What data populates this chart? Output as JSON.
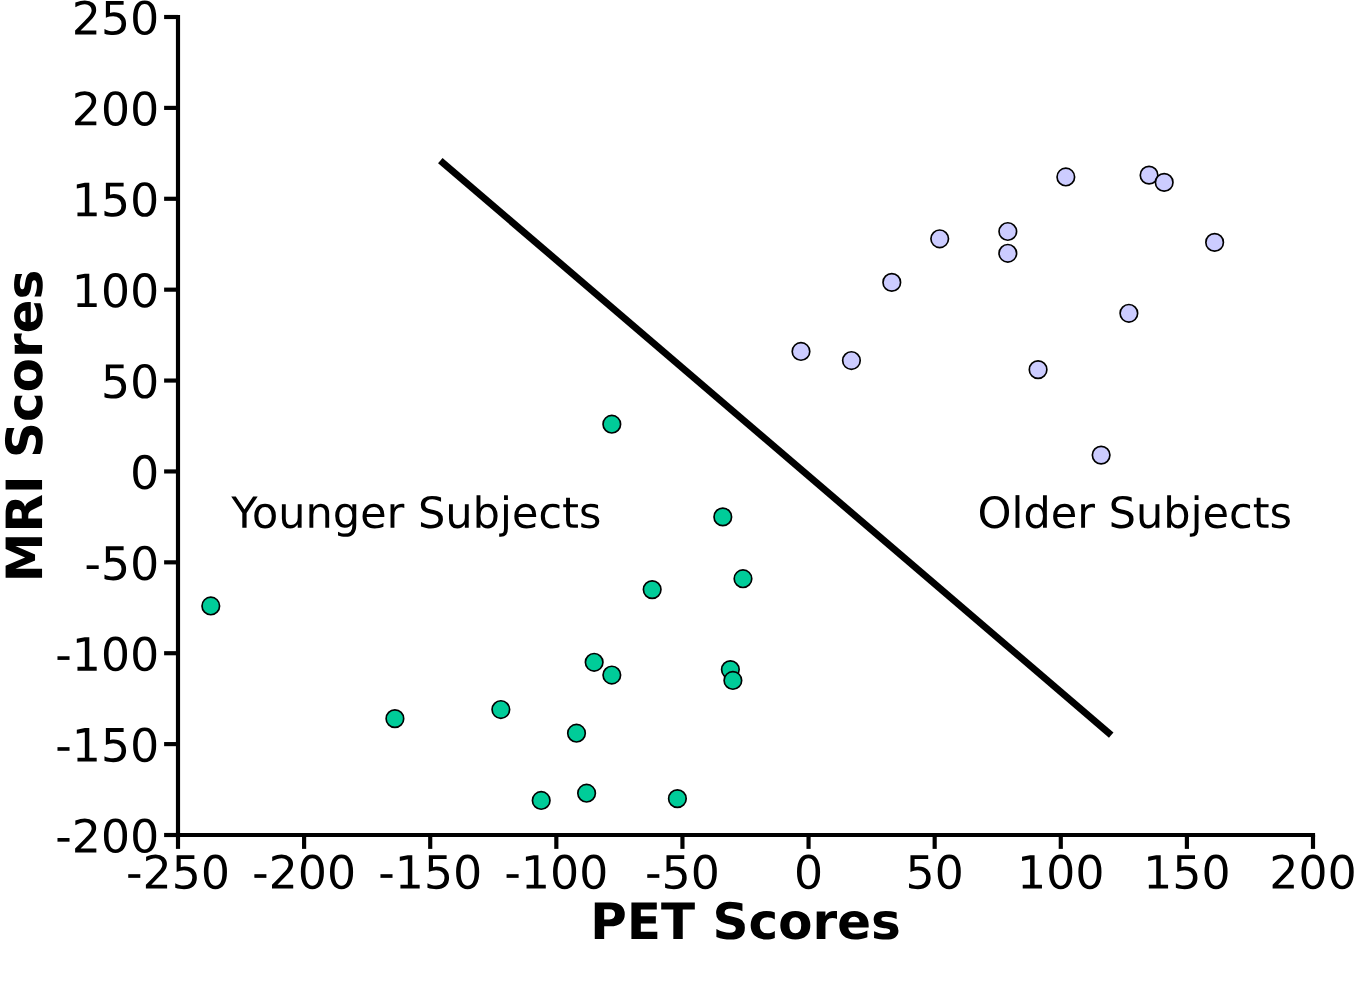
{
  "chart_data": {
    "type": "scatter",
    "xlabel": "PET Scores",
    "ylabel": "MRI Scores",
    "xlim": [
      -250,
      200
    ],
    "xticks": [
      -250,
      -200,
      -150,
      -100,
      -50,
      0,
      50,
      100,
      150,
      200
    ],
    "ylim": [
      -200,
      250
    ],
    "yticks": [
      -200,
      -150,
      -100,
      -50,
      0,
      50,
      100,
      150,
      200,
      250
    ],
    "grid": false,
    "legend": false,
    "marker": "circle",
    "series": [
      {
        "name": "Younger Subjects",
        "color": "#00cc99",
        "x": [
          -237,
          -164,
          -122,
          -106,
          -92,
          -88,
          -85,
          -78,
          -78,
          -62,
          -52,
          -34,
          -31,
          -30,
          -26
        ],
        "values": [
          -74,
          -136,
          -131,
          -181,
          -144,
          -177,
          -105,
          -112,
          26,
          -65,
          -180,
          -25,
          -109,
          -115,
          -59
        ]
      },
      {
        "name": "Older Subjects",
        "color": "#ccccff",
        "x": [
          -3,
          17,
          33,
          52,
          79,
          79,
          102,
          91,
          116,
          127,
          135,
          141,
          161
        ],
        "values": [
          66,
          61,
          104,
          128,
          132,
          120,
          162,
          56,
          9,
          87,
          163,
          159,
          126
        ]
      },
      {
        "type": "line",
        "marker": "none",
        "color": "#000000",
        "x": [
          -146,
          120
        ],
        "values": [
          171,
          -145
        ]
      }
    ]
  }
}
